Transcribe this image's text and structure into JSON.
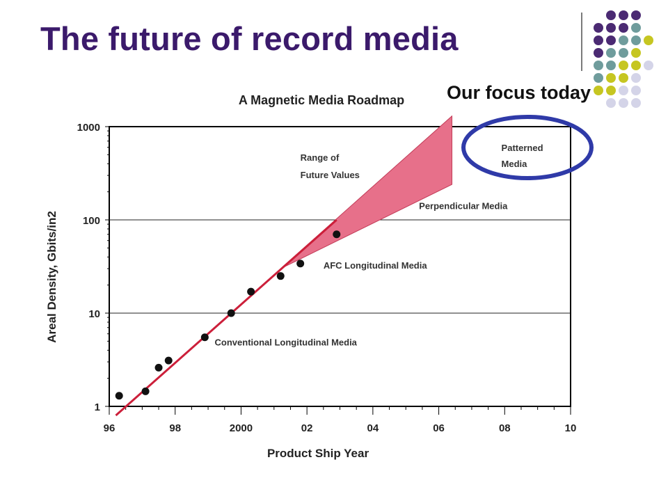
{
  "slide": {
    "title": "The future of record media",
    "callout": "Our focus today",
    "colors": {
      "title": "#3b1a6b",
      "dot_purple": "#4b2a73",
      "dot_teal": "#6f9c9c",
      "dot_yellow": "#c6c621",
      "dot_lavender": "#d4d4e8",
      "ellipse": "#2f3aa8"
    }
  },
  "chart_data": {
    "type": "scatter",
    "title": "A Magnetic Media Roadmap",
    "xlabel": "Product Ship Year",
    "ylabel": "Areal Density, Gbits/in2",
    "y_scale": "log",
    "xlim": [
      1996,
      2010
    ],
    "ylim": [
      1,
      1000
    ],
    "x_tick_labels": [
      "96",
      "98",
      "2000",
      "02",
      "04",
      "06",
      "08",
      "10"
    ],
    "y_tick_labels": [
      "1",
      "10",
      "100",
      "1000"
    ],
    "grid": "horizontal at 10 and 100",
    "series": [
      {
        "points": [
          {
            "x": 1996.3,
            "y": 1.3
          },
          {
            "x": 1997.1,
            "y": 1.45
          },
          {
            "x": 1997.5,
            "y": 2.6
          },
          {
            "x": 1997.8,
            "y": 3.1
          },
          {
            "x": 1998.9,
            "y": 5.5
          },
          {
            "x": 1999.7,
            "y": 10
          },
          {
            "x": 2000.3,
            "y": 17
          },
          {
            "x": 2001.2,
            "y": 25
          },
          {
            "x": 2001.8,
            "y": 34
          },
          {
            "x": 2002.9,
            "y": 70
          }
        ]
      }
    ],
    "trend_line": {
      "x": [
        1996.2,
        2002.9
      ],
      "y": [
        0.8,
        100
      ]
    },
    "future_range": {
      "start": {
        "x": 2001.2,
        "y": 30
      },
      "upper": {
        "x": 2006.4,
        "y": 1300
      },
      "lower": {
        "x": 2006.4,
        "y": 240
      }
    },
    "annotations": [
      {
        "text": "Range of",
        "x": 2001.8,
        "y": 430
      },
      {
        "text": "Future Values",
        "x": 2001.8,
        "y": 280
      },
      {
        "text": "Patterned",
        "x": 2007.9,
        "y": 550
      },
      {
        "text": "Media",
        "x": 2007.9,
        "y": 370
      },
      {
        "text": "Perpendicular Media",
        "x": 2005.4,
        "y": 130
      },
      {
        "text": "AFC Longitudinal Media",
        "x": 2002.5,
        "y": 30
      },
      {
        "text": "Conventional Longitudinal Media",
        "x": 1999.2,
        "y": 4.5
      }
    ],
    "colors": {
      "trend": "#cc1f3a",
      "range_fill": "#e7708a",
      "points": "#111111",
      "axes": "#000000"
    }
  }
}
